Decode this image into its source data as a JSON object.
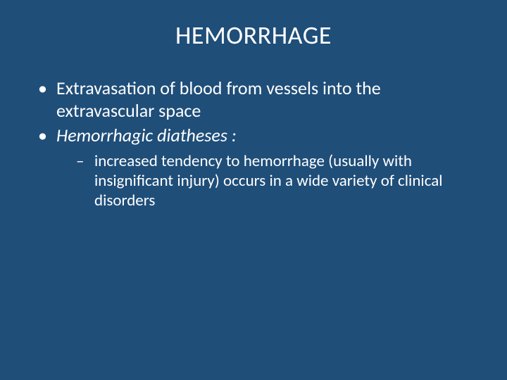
{
  "slide": {
    "background_color": "#1f4e79",
    "text_color": "#ffffff",
    "font_family": "Calibri",
    "title": {
      "text": "HEMORRHAGE",
      "fontsize": 36,
      "align": "center"
    },
    "bullets": [
      {
        "text": "Extravasation of blood from vessels into the extravascular space",
        "italic": false,
        "fontsize": 26
      },
      {
        "text": "Hemorrhagic diatheses :",
        "italic": true,
        "fontsize": 26
      }
    ],
    "sub_bullet": {
      "text": "increased tendency to hemorrhage (usually with insignificant injury) occurs in a wide variety of clinical disorders",
      "fontsize": 23
    }
  }
}
